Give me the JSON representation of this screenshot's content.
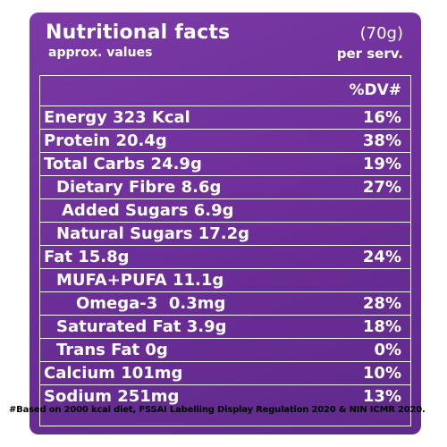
{
  "header": {
    "title": "Nutritional facts",
    "subtitle": "approx. values",
    "serving_weight": "(70g)",
    "serving_label": "per serv."
  },
  "table": {
    "dv_header": "%DV#",
    "rows": [
      {
        "label": "Energy 323 Kcal",
        "dv": "16%"
      },
      {
        "label": "Protein 20.4g",
        "dv": "38%"
      },
      {
        "label": "Total Carbs 24.9g",
        "dv": "19%"
      },
      {
        "label": "Dietary Fibre 8.6g",
        "dv": "27%"
      },
      {
        "label": "Added Sugars 6.9g",
        "dv": ""
      },
      {
        "label": "Natural Sugars 17.2g",
        "dv": ""
      },
      {
        "label": "Fat 15.8g",
        "dv": "24%"
      },
      {
        "label": "MUFA+PUFA 11.1g",
        "dv": ""
      },
      {
        "label": "Omega-3  0.3mg",
        "dv": "28%"
      },
      {
        "label": "Saturated Fat 3.9g",
        "dv": "18%"
      },
      {
        "label": "Trans Fat 0g",
        "dv": "0%"
      },
      {
        "label": "Calcium 101mg",
        "dv": "10%"
      },
      {
        "label": "Sodium 251mg",
        "dv": "13%"
      }
    ]
  },
  "footnote": "#Based on 2000 kcal diet, FSSAI Labelling Display Regulation 2020 & NIN ICMR 2020."
}
